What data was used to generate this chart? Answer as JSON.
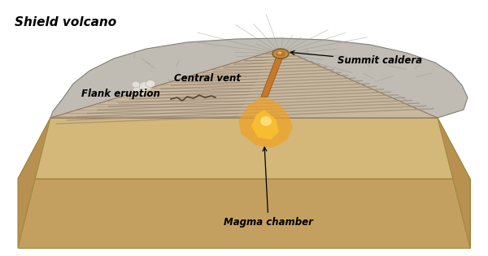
{
  "title": "Shield volcano",
  "labels": {
    "central_vent": "Central vent",
    "summit_caldera": "Summit caldera",
    "flank_eruption": "Flank eruption",
    "magma_chamber": "Magma chamber"
  },
  "colors": {
    "background": "#ffffff",
    "ground_top": "#d4b87a",
    "ground_front": "#c4a060",
    "ground_right": "#b89050",
    "volcano_surface": "#c0bcb4",
    "volcano_edge": "#a0a098",
    "cut_face_light": "#c8beb0",
    "cut_face_dark": "#a09080",
    "stripe_color": "#a09078",
    "stripe_bg": "#c8b8a0",
    "magma_outer": "#f0a020",
    "magma_inner": "#f8d040",
    "magma_edge": "#e06000",
    "vent_color": "#c87828",
    "summit_color": "#b87828",
    "caldera_color": "#8a6020",
    "flank_cloud": "#e8e4dc",
    "crack_color": "#5a4030",
    "label_color": "#000000",
    "title_color": "#000000"
  },
  "figsize": [
    6.0,
    3.15
  ],
  "dpi": 100
}
